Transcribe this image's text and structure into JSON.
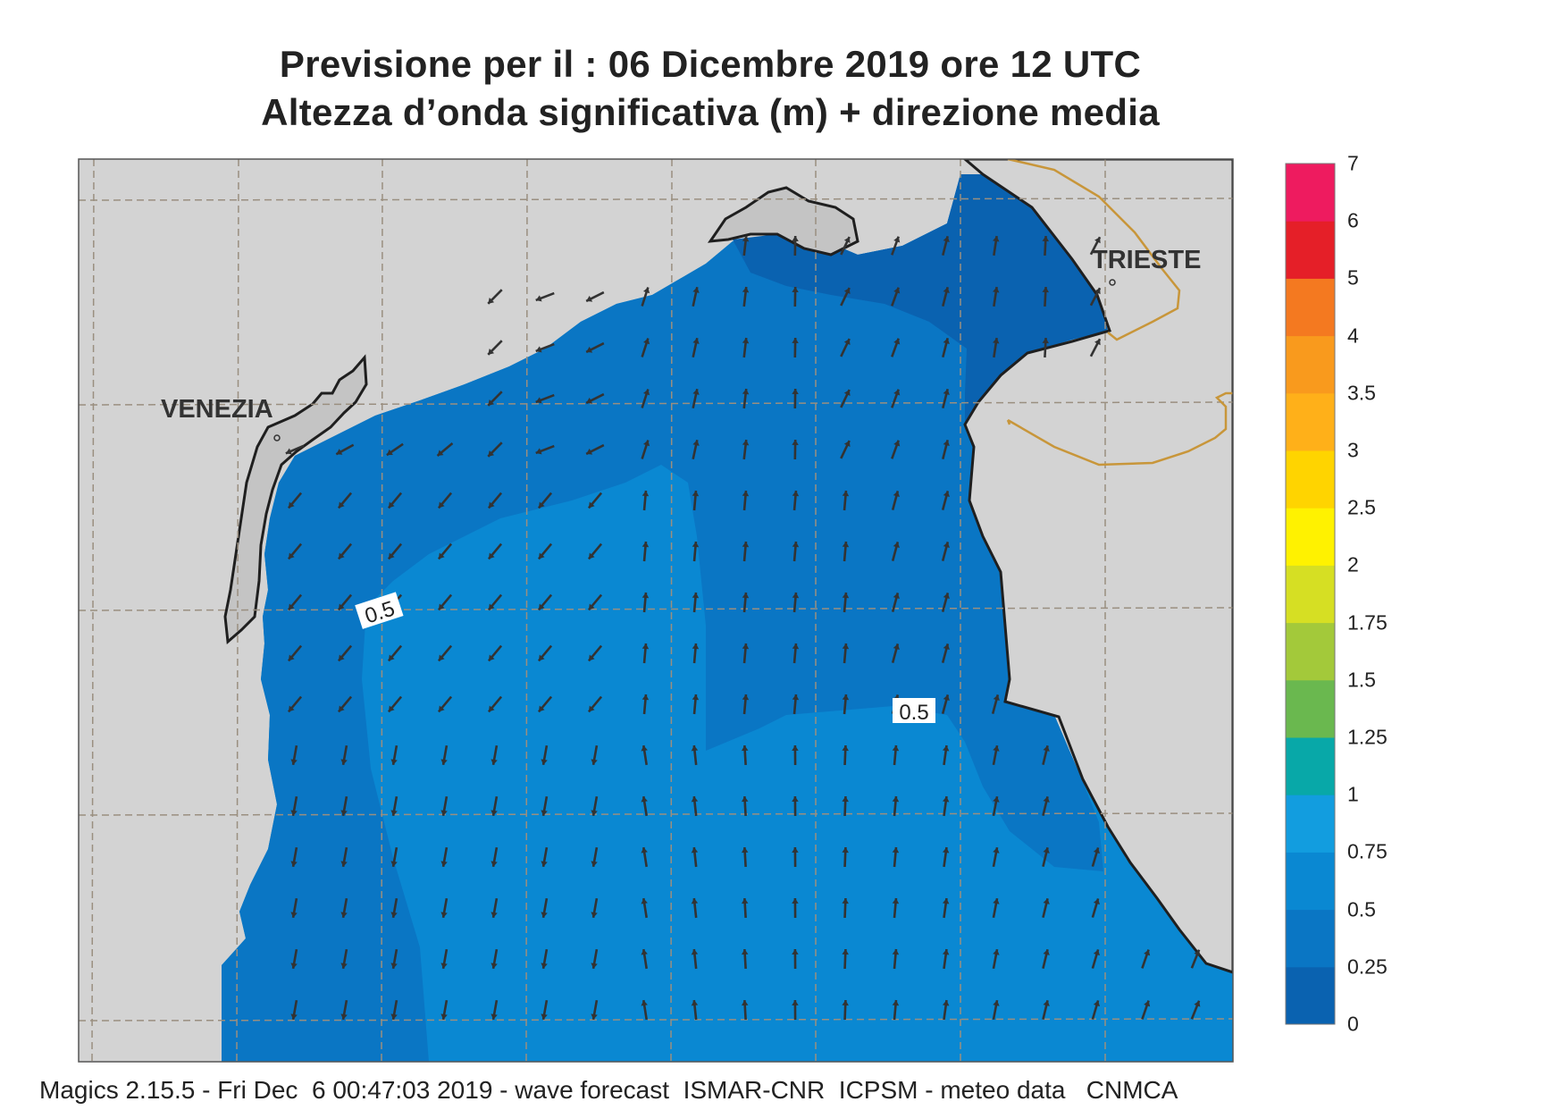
{
  "title_line1": "Previsione per il  :  06 Dicembre  2019   ore 12 UTC",
  "title_line2": "Altezza d’onda significativa (m) + direzione media",
  "footer": "Magics 2.15.5 - Fri Dec  6 00:47:03 2019 - wave forecast  ISMAR-CNR  ICPSM - meteo data   CNMCA",
  "map": {
    "place_labels": [
      "VENEZIA",
      "TRIESTE"
    ],
    "contour_labels": [
      "0.5",
      "0.5"
    ],
    "colors": {
      "land": "#d3d3d3",
      "coastline": "#1f1f1f",
      "graticule": "#9a8f80",
      "border": "#c8963a",
      "arrow": "#333333"
    }
  },
  "legend": {
    "labels": [
      "0",
      "0.25",
      "0.5",
      "0.75",
      "1",
      "1.25",
      "1.5",
      "1.75",
      "2",
      "2.5",
      "3",
      "3.5",
      "4",
      "5",
      "6",
      "7"
    ],
    "colors": [
      "#0a62b0",
      "#0a76c4",
      "#0a88d2",
      "#129ddf",
      "#08a8a8",
      "#6ab84f",
      "#a3c93a",
      "#d6df23",
      "#fff200",
      "#ffd400",
      "#ffb019",
      "#f99a1d",
      "#f47920",
      "#e51f28",
      "#ee1b5f"
    ]
  }
}
